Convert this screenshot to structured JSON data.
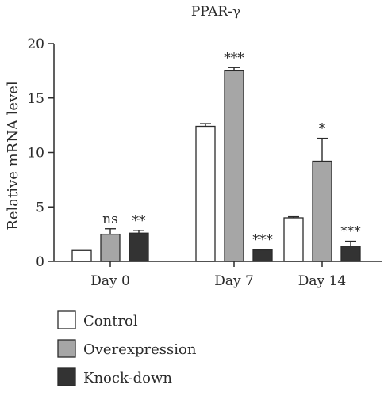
{
  "chart_data": {
    "type": "bar",
    "title": "PPAR-γ",
    "xlabel": "",
    "ylabel": "Relative mRNA level",
    "ylim": [
      0,
      20
    ],
    "yticks": [
      0,
      5,
      10,
      15,
      20
    ],
    "categories": [
      "Day 0",
      "Day 7",
      "Day 14"
    ],
    "series": [
      {
        "name": "Control",
        "color": "#ffffff",
        "values": [
          1.0,
          12.4,
          4.0
        ],
        "errors": [
          0.0,
          0.25,
          0.1
        ],
        "significance": [
          "",
          "",
          ""
        ]
      },
      {
        "name": "Overexpression",
        "color": "#a6a6a6",
        "values": [
          2.5,
          17.5,
          9.2
        ],
        "errors": [
          0.5,
          0.3,
          2.1
        ],
        "significance": [
          "ns",
          "***",
          "*"
        ]
      },
      {
        "name": "Knock-down",
        "color": "#333333",
        "values": [
          2.6,
          1.05,
          1.4
        ],
        "errors": [
          0.25,
          0.05,
          0.45
        ],
        "significance": [
          "**",
          "***",
          "***"
        ]
      }
    ],
    "legend_position": "bottom-left",
    "grid": false
  }
}
